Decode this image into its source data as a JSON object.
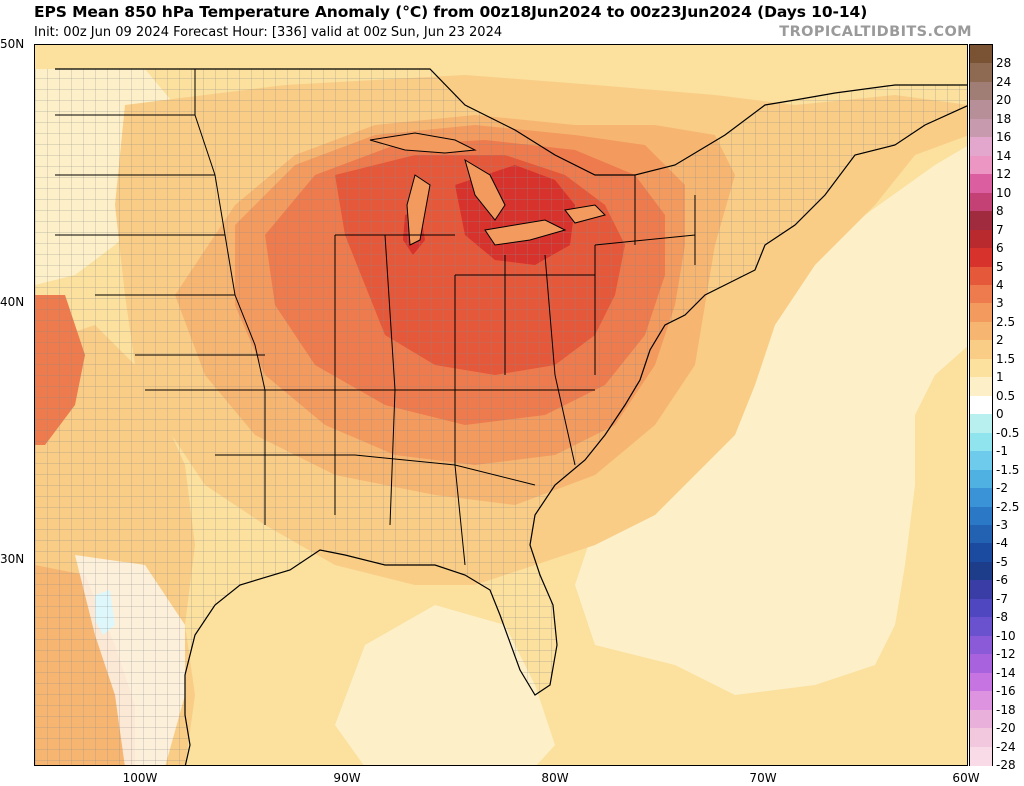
{
  "header": {
    "title": "EPS Mean 850 hPa Temperature Anomaly (°C) from 00z18Jun2024 to 00z23Jun2024 (Days 10-14)",
    "subtitle": "Init: 00z Jun 09 2024   Forecast Hour: [336]   valid at 00z Sun, Jun 23 2024",
    "brand": "TROPICALTIDBITS.COM"
  },
  "map": {
    "lat_labels": [
      "50N",
      "40N",
      "30N"
    ],
    "lon_labels": [
      "100W",
      "90W",
      "80W",
      "70W",
      "60W"
    ],
    "colors": {
      "background_anom": "#fbeab0",
      "ocean_pale": "#fdf3c4",
      "coast": "#000000",
      "state": "#000000",
      "county": "#8a8a8a"
    }
  },
  "colorbar": {
    "labels": [
      "28",
      "24",
      "20",
      "18",
      "16",
      "14",
      "12",
      "10",
      "8",
      "7",
      "6",
      "5",
      "4",
      "3",
      "2.5",
      "2",
      "1.5",
      "1",
      "0.5",
      "0",
      "-0.5",
      "-1",
      "-1.5",
      "-2",
      "-2.5",
      "-3",
      "-4",
      "-5",
      "-6",
      "-7",
      "-8",
      "-10",
      "-12",
      "-14",
      "-16",
      "-18",
      "-20",
      "-24",
      "-28"
    ],
    "colors": [
      "#7a5234",
      "#8e6a53",
      "#a07e76",
      "#b68f99",
      "#c79aae",
      "#e3a7cd",
      "#ec96c3",
      "#db5fa0",
      "#c44176",
      "#a12b3e",
      "#b82a2e",
      "#d8322c",
      "#e6583a",
      "#ee7b4d",
      "#f39a5f",
      "#f6b672",
      "#f9cd86",
      "#fbe09e",
      "#fdf0c8",
      "#ffffff",
      "#b8f0f0",
      "#8fe4ee",
      "#6fcbeb",
      "#4fb0e2",
      "#3993d6",
      "#2b78c7",
      "#2361b3",
      "#1b4ba0",
      "#1d3c8a",
      "#3a3da6",
      "#4f47bf",
      "#6a52cf",
      "#8a5ad9",
      "#a962de",
      "#c574e2",
      "#dd93e0",
      "#eab0dc",
      "#f2c8de",
      "#f8dbe6"
    ]
  }
}
